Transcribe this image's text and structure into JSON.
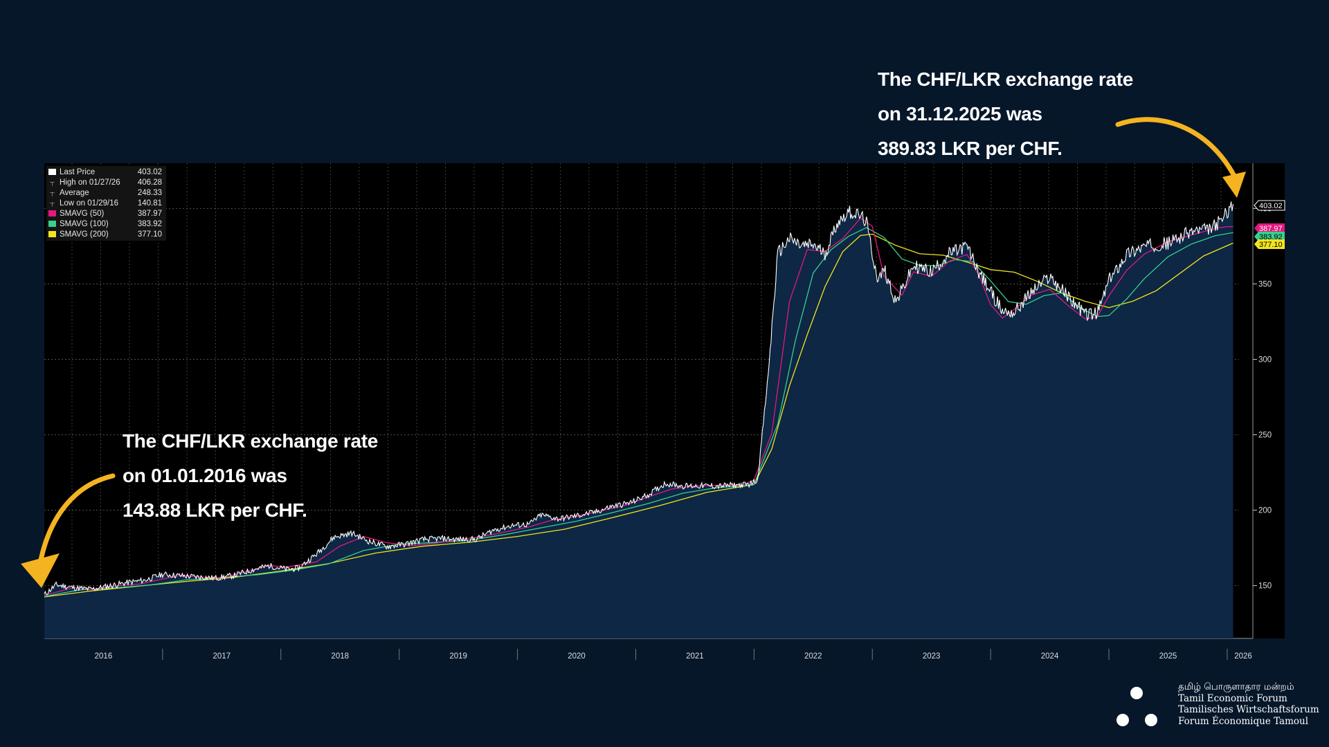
{
  "annotation_top": {
    "line1": "The CHF/LKR exchange rate",
    "line2": "on 31.12.2025 was",
    "line3": "389.83 LKR per CHF."
  },
  "annotation_bottom": {
    "line1": "The CHF/LKR exchange rate",
    "line2": "on 01.01.2016 was",
    "line3": "143.88 LKR per CHF."
  },
  "legend": [
    {
      "label": "Last Price",
      "value": "403.02",
      "color": "#ffffff",
      "symbol": "square"
    },
    {
      "label": "High on 01/27/26",
      "value": "406.28",
      "color": "#aaaaaa",
      "symbol": "tick"
    },
    {
      "label": "Average",
      "value": "248.33",
      "color": "#aaaaaa",
      "symbol": "tick"
    },
    {
      "label": "Low on 01/29/16",
      "value": "140.81",
      "color": "#aaaaaa",
      "symbol": "tick"
    },
    {
      "label": "SMAVG (50)",
      "value": "387.97",
      "color": "#e2197f",
      "symbol": "square"
    },
    {
      "label": "SMAVG (100)",
      "value": "383.92",
      "color": "#37d08f",
      "symbol": "square"
    },
    {
      "label": "SMAVG (200)",
      "value": "377.10",
      "color": "#f2e51f",
      "symbol": "square"
    }
  ],
  "price_tags": [
    {
      "value": "403.02",
      "bg": "#000000",
      "fg": "#ffffff"
    },
    {
      "value": "387.97",
      "bg": "#e2197f",
      "fg": "#ffffff"
    },
    {
      "value": "383.92",
      "bg": "#37d08f",
      "fg": "#000000"
    },
    {
      "value": "377.10",
      "bg": "#f2e51f",
      "fg": "#000000"
    }
  ],
  "logo": {
    "tamil": "தமிழ் பொருளாதார மன்றம்",
    "en": "Tamil Economic Forum",
    "de": "Tamilisches Wirtschaftsforum",
    "fr": "Forum Économique Tamoul"
  },
  "chart_data": {
    "type": "line",
    "title": "CHF/LKR",
    "xlabel": "",
    "ylabel": "",
    "x_tick_labels": [
      "2016",
      "2017",
      "2018",
      "2019",
      "2020",
      "2021",
      "2022",
      "2023",
      "2024",
      "2025",
      "2026"
    ],
    "y_ticks": [
      150,
      200,
      250,
      300,
      350,
      400
    ],
    "ylim": [
      115,
      430
    ],
    "xlim": [
      2016.0,
      2026.1
    ],
    "grid": true,
    "legend_position": "top-left",
    "colors": {
      "price": "#ffffff",
      "area": "#0d2744",
      "sma50": "#e2197f",
      "sma100": "#37d08f",
      "sma200": "#f2e51f"
    },
    "series": [
      {
        "name": "Last Price",
        "x": [
          2016.0,
          2016.1,
          2016.25,
          2016.4,
          2016.55,
          2016.7,
          2016.85,
          2017.0,
          2017.15,
          2017.3,
          2017.45,
          2017.6,
          2017.75,
          2017.9,
          2018.05,
          2018.15,
          2018.3,
          2018.45,
          2018.6,
          2018.75,
          2018.9,
          2019.05,
          2019.2,
          2019.35,
          2019.5,
          2019.65,
          2019.8,
          2019.95,
          2020.1,
          2020.2,
          2020.35,
          2020.5,
          2020.65,
          2020.8,
          2020.95,
          2021.1,
          2021.25,
          2021.4,
          2021.55,
          2021.7,
          2021.8,
          2021.95,
          2022.03,
          2022.12,
          2022.2,
          2022.3,
          2022.4,
          2022.5,
          2022.6,
          2022.7,
          2022.8,
          2022.9,
          2022.95,
          2023.0,
          2023.05,
          2023.1,
          2023.2,
          2023.35,
          2023.5,
          2023.65,
          2023.8,
          2023.9,
          2024.0,
          2024.1,
          2024.2,
          2024.35,
          2024.5,
          2024.65,
          2024.8,
          2024.9,
          2025.0,
          2025.15,
          2025.3,
          2025.5,
          2025.7,
          2025.85,
          2025.95,
          2026.0,
          2026.05
        ],
        "values": [
          143.9,
          150.5,
          148.6,
          147.6,
          149.8,
          152.0,
          153.6,
          157.5,
          156.6,
          155.7,
          155.0,
          156.7,
          160.3,
          163.2,
          160.8,
          161.5,
          170.9,
          182.2,
          184.8,
          179.2,
          175.9,
          177.5,
          180.5,
          181.3,
          180.6,
          180.7,
          186.9,
          189.8,
          190.7,
          196.9,
          194.2,
          196.3,
          198.6,
          202.5,
          204.8,
          210.0,
          217.8,
          216.0,
          216.2,
          216.0,
          216.5,
          217.0,
          220.0,
          290.0,
          370.0,
          380.0,
          375.0,
          376.0,
          370.0,
          390.0,
          398.0,
          395.0,
          391.0,
          370.0,
          352.0,
          360.0,
          338.0,
          362.0,
          358.0,
          370.0,
          375.0,
          358.0,
          345.0,
          332.0,
          331.0,
          345.0,
          355.0,
          342.0,
          330.0,
          330.0,
          352.0,
          370.0,
          375.0,
          377.0,
          385.0,
          386.0,
          392.0,
          398.0,
          403.0
        ]
      },
      {
        "name": "SMAVG (50)",
        "x": [
          2016.0,
          2016.25,
          2016.4,
          2016.6,
          2016.8,
          2017.0,
          2017.15,
          2017.3,
          2017.5,
          2017.7,
          2017.9,
          2018.05,
          2018.3,
          2018.5,
          2018.7,
          2018.9,
          2019.1,
          2019.3,
          2019.5,
          2019.7,
          2019.9,
          2020.1,
          2020.3,
          2020.5,
          2020.7,
          2020.9,
          2021.1,
          2021.3,
          2021.5,
          2021.7,
          2021.9,
          2022.0,
          2022.15,
          2022.3,
          2022.45,
          2022.6,
          2022.75,
          2022.9,
          2023.0,
          2023.1,
          2023.25,
          2023.35,
          2023.5,
          2023.65,
          2023.8,
          2023.9,
          2024.0,
          2024.1,
          2024.2,
          2024.35,
          2024.5,
          2024.65,
          2024.8,
          2024.9,
          2025.0,
          2025.15,
          2025.3,
          2025.5,
          2025.7,
          2025.9,
          2026.0,
          2026.05
        ],
        "values": [
          143.5,
          148.7,
          147.6,
          149.8,
          151.0,
          154.4,
          156.9,
          155.8,
          154.9,
          159.2,
          163.3,
          162.3,
          165.7,
          176.2,
          182.5,
          178.4,
          176.5,
          177.9,
          180.5,
          182.5,
          185.6,
          189.0,
          193.6,
          196.0,
          199.5,
          203.0,
          208.6,
          214.0,
          216.0,
          216.5,
          216.5,
          220.0,
          251.1,
          338.4,
          372.8,
          371.6,
          380.0,
          393.6,
          388.2,
          355.0,
          342.5,
          358.0,
          355.0,
          365.0,
          369.5,
          356.0,
          336.3,
          327.3,
          333.1,
          342.8,
          346.4,
          336.0,
          326.8,
          328.0,
          342.0,
          359.0,
          369.8,
          378.0,
          382.5,
          386.8,
          388.0,
          388.0
        ]
      },
      {
        "name": "SMAVG (100)",
        "x": [
          2016.0,
          2016.3,
          2016.6,
          2016.9,
          2017.2,
          2017.5,
          2017.8,
          2018.1,
          2018.4,
          2018.7,
          2019.0,
          2019.3,
          2019.6,
          2019.9,
          2020.2,
          2020.5,
          2020.8,
          2021.1,
          2021.4,
          2021.7,
          2021.9,
          2022.0,
          2022.2,
          2022.35,
          2022.5,
          2022.65,
          2022.8,
          2022.95,
          2023.1,
          2023.25,
          2023.4,
          2023.55,
          2023.7,
          2023.85,
          2024.0,
          2024.15,
          2024.3,
          2024.45,
          2024.6,
          2024.75,
          2024.9,
          2025.0,
          2025.15,
          2025.3,
          2025.5,
          2025.7,
          2025.9,
          2026.05
        ],
        "values": [
          142.8,
          147.2,
          148.5,
          150.5,
          153.8,
          155.4,
          157.2,
          160.2,
          164.3,
          173.3,
          177.4,
          178.6,
          180.2,
          183.9,
          188.3,
          192.7,
          198.3,
          204.3,
          211.3,
          215.1,
          216.0,
          217.0,
          256.8,
          312.7,
          357.2,
          372.6,
          381.6,
          387.3,
          380.8,
          366.6,
          362.3,
          362.1,
          366.1,
          364.7,
          352.0,
          338.3,
          336.5,
          342.2,
          344.1,
          334.5,
          328.4,
          329.0,
          340.0,
          353.5,
          368.0,
          376.5,
          382.0,
          384.0
        ]
      },
      {
        "name": "SMAVG (200)",
        "x": [
          2016.0,
          2016.4,
          2016.8,
          2017.2,
          2017.6,
          2018.0,
          2018.4,
          2018.8,
          2019.2,
          2019.6,
          2020.0,
          2020.4,
          2020.8,
          2021.2,
          2021.6,
          2021.9,
          2022.0,
          2022.15,
          2022.3,
          2022.45,
          2022.6,
          2022.75,
          2022.9,
          2023.0,
          2023.2,
          2023.4,
          2023.6,
          2023.8,
          2024.0,
          2024.2,
          2024.4,
          2024.6,
          2024.8,
          2025.0,
          2025.2,
          2025.4,
          2025.6,
          2025.8,
          2026.05
        ],
        "values": [
          142.5,
          146.5,
          149.7,
          152.8,
          155.5,
          159.6,
          164.5,
          171.6,
          176.1,
          178.8,
          182.6,
          187.4,
          195.0,
          203.0,
          211.8,
          215.7,
          217.0,
          240.6,
          282.5,
          316.3,
          348.2,
          371.4,
          382.1,
          383.0,
          375.5,
          370.0,
          369.0,
          364.5,
          359.5,
          357.8,
          351.5,
          344.0,
          338.5,
          334.3,
          338.5,
          345.5,
          357.0,
          368.5,
          377.1
        ]
      }
    ]
  }
}
